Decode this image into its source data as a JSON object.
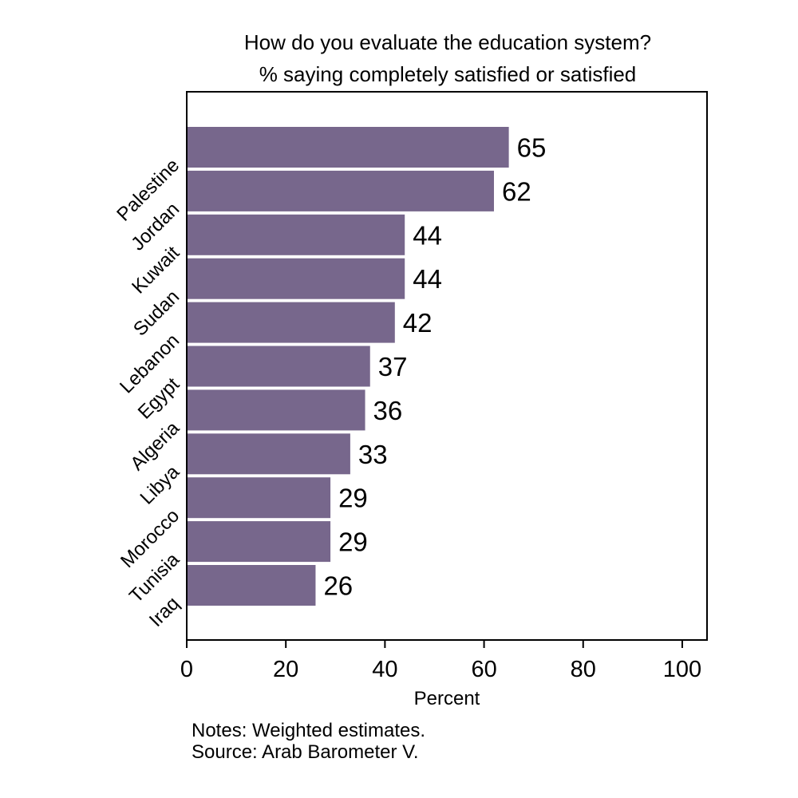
{
  "chart_data": {
    "type": "bar",
    "orientation": "horizontal",
    "title": "How do you evaluate the education system?",
    "subtitle": "% saying completely satisfied or satisfied",
    "xlabel": "Percent",
    "ylabel": "",
    "categories": [
      "Palestine",
      "Jordan",
      "Kuwait",
      "Sudan",
      "Lebanon",
      "Egypt",
      "Algeria",
      "Libya",
      "Morocco",
      "Tunisia",
      "Iraq"
    ],
    "values": [
      65,
      62,
      44,
      44,
      42,
      37,
      36,
      33,
      29,
      29,
      26
    ],
    "xlim": [
      0,
      105
    ],
    "xticks": [
      0,
      20,
      40,
      60,
      80,
      100
    ],
    "grid": false,
    "bar_color": "#77678c",
    "notes": "Notes: Weighted estimates.",
    "source": "Source: Arab Barometer V."
  }
}
